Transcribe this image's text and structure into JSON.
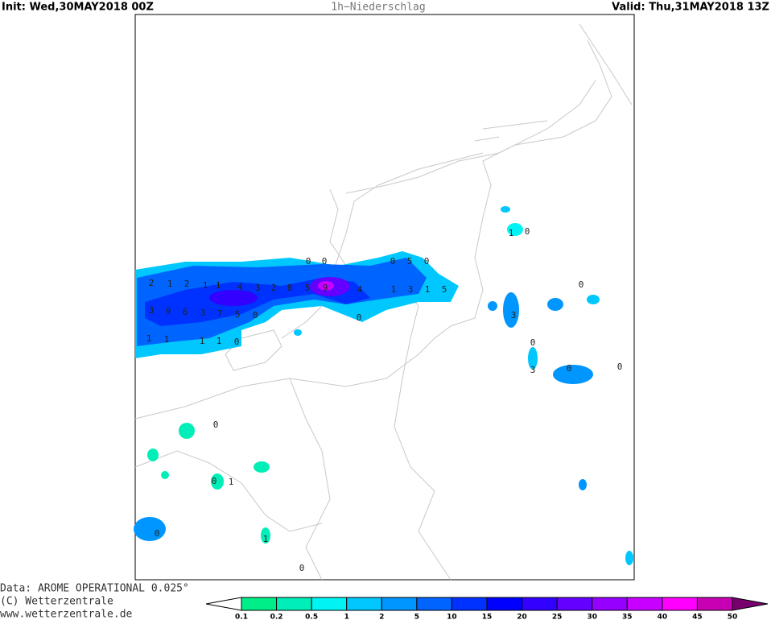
{
  "header": {
    "init": "Init: Wed,30MAY2018 00Z",
    "title": "1h−Niederschlag",
    "valid": "Valid: Thu,31MAY2018 13Z"
  },
  "footer": {
    "source": "Data: AROME OPERATIONAL 0.025°",
    "copyright": "(C) Wetterzentrale",
    "url": "www.wetterzentrale.de"
  },
  "map_labels": [
    "0",
    "0",
    "0",
    "5",
    "0",
    "2",
    "1",
    "2",
    "1",
    "1",
    "4",
    "3",
    "2",
    "8",
    "5",
    "9",
    "4",
    "1",
    "3",
    "1",
    "5",
    "3",
    "9",
    "6",
    "3",
    "7",
    "5",
    "0",
    "0",
    "1",
    "1",
    "1",
    "1",
    "0",
    "1",
    "0",
    "0",
    "3",
    "0",
    "3",
    "0",
    "0",
    "0",
    "0",
    "1",
    "0",
    "1",
    "0"
  ],
  "legend": {
    "labels": [
      0.1,
      0.2,
      0.5,
      1,
      2,
      5,
      10,
      15,
      20,
      25,
      30,
      35,
      40,
      45,
      50
    ],
    "colors": [
      "#00ee88",
      "#00eeb8",
      "#00f4f4",
      "#00c8ff",
      "#0096ff",
      "#0064ff",
      "#0032ff",
      "#0000ff",
      "#3200ff",
      "#6400ff",
      "#9600ff",
      "#c800ff",
      "#ff00ff",
      "#c800b4"
    ],
    "under_color": "#ffffff",
    "over_color": "#78006e"
  }
}
